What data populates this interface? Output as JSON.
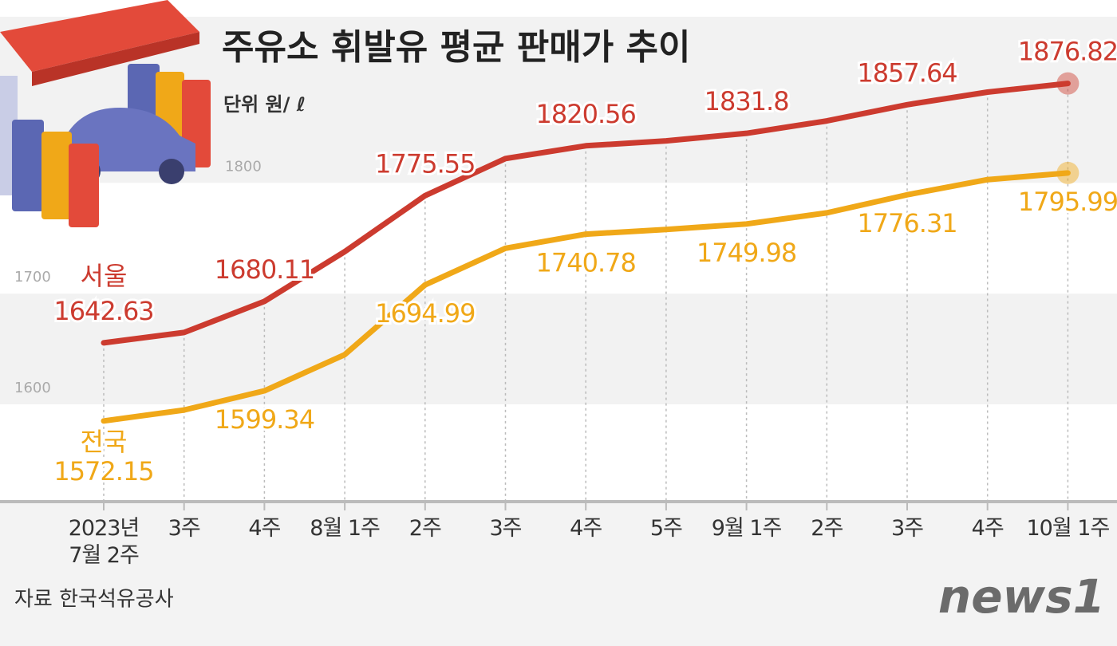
{
  "chart_data": {
    "type": "line",
    "title": "주유소 휘발유 평균 판매가 추이",
    "unit_label": "단위 원/ ℓ",
    "source": "자료 한국석유공사",
    "logo": "news1",
    "categories": [
      "2023년\n7월 2주",
      "3주",
      "4주",
      "8월 1주",
      "2주",
      "3주",
      "4주",
      "5주",
      "9월 1주",
      "2주",
      "3주",
      "4주",
      "10월 1주"
    ],
    "series": [
      {
        "name": "서울",
        "color": "#cc3b2f",
        "values": [
          1642.63,
          1652,
          1680.11,
          1725,
          1775.55,
          1809,
          1820.56,
          1825,
          1831.8,
          1843,
          1857.64,
          1869,
          1876.82
        ],
        "value_labels": [
          "1642.63",
          null,
          "1680.11",
          null,
          "1775.55",
          null,
          "1820.56",
          null,
          "1831.8",
          null,
          "1857.64",
          null,
          "1876.82"
        ]
      },
      {
        "name": "전국",
        "color": "#f0a818",
        "values": [
          1572.15,
          1582,
          1599.34,
          1632,
          1694.99,
          1728,
          1740.78,
          1745,
          1749.98,
          1760,
          1776.31,
          1790,
          1795.99
        ],
        "value_labels": [
          "1572.15",
          null,
          "1599.34",
          null,
          "1694.99",
          null,
          "1740.78",
          null,
          "1749.98",
          null,
          "1776.31",
          null,
          "1795.99"
        ]
      }
    ],
    "ylim": [
      1500,
      1950
    ],
    "yticks": [
      1600,
      1700,
      1800
    ],
    "grid": true
  }
}
